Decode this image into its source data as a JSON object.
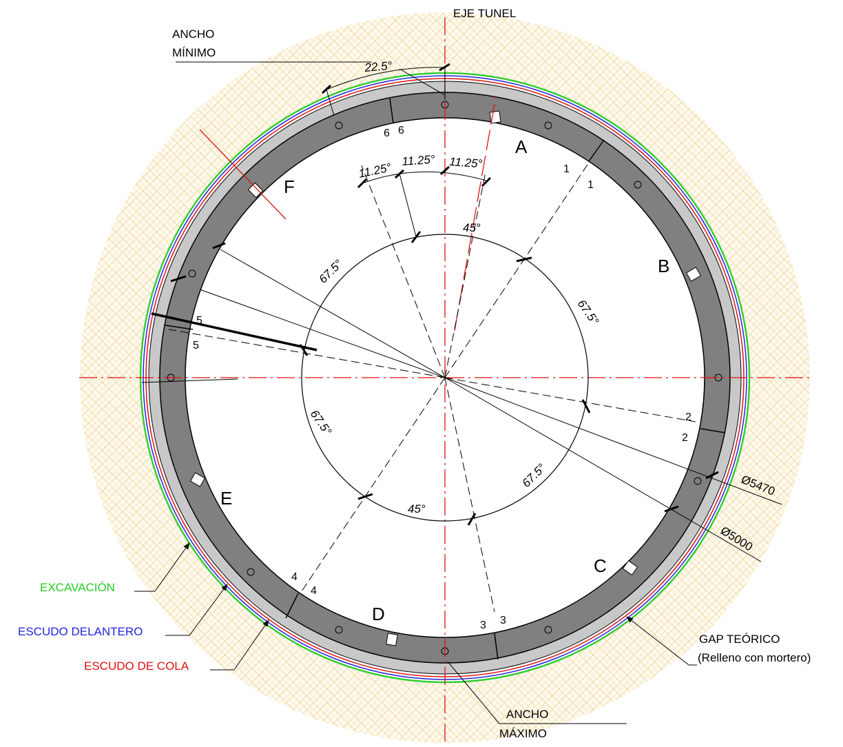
{
  "title": "",
  "labels": {
    "eje_tunel": "EJE TUNEL",
    "ancho_minimo_1": "ANCHO",
    "ancho_minimo_2": "MÍNIMO",
    "ancho_maximo_1": "ANCHO",
    "ancho_maximo_2": "MÁXIMO",
    "excavacion": "EXCAVACIÓN",
    "escudo_delantero": "ESCUDO DELANTERO",
    "escudo_de_cola": "ESCUDO DE COLA",
    "gap_teorico_1": "GAP TEÓRICO",
    "gap_teorico_2": "(Relleno con mortero)",
    "diam_exterior": "Ø5470",
    "diam_interior": "Ø5000"
  },
  "segments": [
    "A",
    "B",
    "C",
    "D",
    "E",
    "F"
  ],
  "joints": [
    {
      "a": "1",
      "b": "1"
    },
    {
      "a": "2",
      "b": "2"
    },
    {
      "a": "3",
      "b": "3"
    },
    {
      "a": "4",
      "b": "4"
    },
    {
      "a": "5",
      "b": "5"
    },
    {
      "a": "6",
      "b": "6"
    }
  ],
  "angles": {
    "key_top": "22.5°",
    "small_1": "11.25°",
    "small_2": "11.25°",
    "small_3": "11.25°",
    "top_45": "45°",
    "bottom_45": "45°",
    "upper_left_675": "67.5°",
    "upper_right_675": "67.5°",
    "lower_left_675": "67.5°",
    "lower_right_675": "67.5°"
  },
  "colors": {
    "excavacion": "#33cc33",
    "escudo_delantero": "#2222dd",
    "escudo_de_cola": "#dd1111",
    "ring_segment": "#808080",
    "gap": "#c8c8c8",
    "terrain_hatch": "#f0d9a0",
    "axis": "#dd1111"
  }
}
